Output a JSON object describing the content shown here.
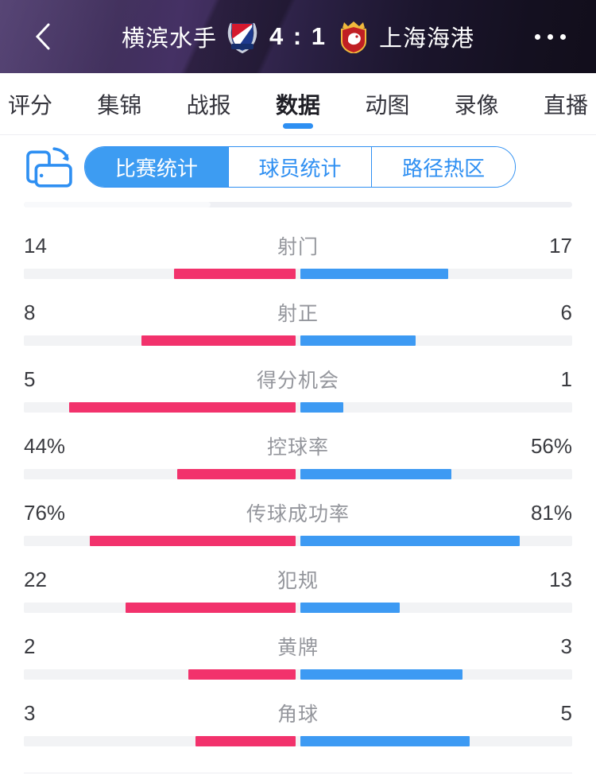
{
  "header": {
    "home_team": "横滨水手",
    "away_team": "上海海港",
    "score": "4 : 1",
    "icons": {
      "back": "chevron-left",
      "more": "ellipsis",
      "home_badge": "yokohama-marinos-crest",
      "away_badge": "shanghai-port-crest"
    }
  },
  "tabs": {
    "items": [
      {
        "id": "rating",
        "label": "评分",
        "active": false
      },
      {
        "id": "highlights",
        "label": "集锦",
        "active": false
      },
      {
        "id": "report",
        "label": "战报",
        "active": false
      },
      {
        "id": "data",
        "label": "数据",
        "active": true
      },
      {
        "id": "gifs",
        "label": "动图",
        "active": false
      },
      {
        "id": "video",
        "label": "录像",
        "active": false
      },
      {
        "id": "live",
        "label": "直播",
        "active": false
      }
    ]
  },
  "subtabs": {
    "rotate_icon": "rotate-screen",
    "items": [
      {
        "id": "match-stats",
        "label": "比赛统计",
        "active": true
      },
      {
        "id": "player-stats",
        "label": "球员统计",
        "active": false
      },
      {
        "id": "heat-map",
        "label": "路径热区",
        "active": false
      }
    ]
  },
  "stats": {
    "left_color": "#f2326c",
    "right_color": "#3d9af3",
    "track_color": "#f2f3f5",
    "rows": [
      {
        "id": "shots",
        "label": "射门",
        "left": "14",
        "right": "17"
      },
      {
        "id": "shots-on-target",
        "label": "射正",
        "left": "8",
        "right": "6"
      },
      {
        "id": "big-chances",
        "label": "得分机会",
        "left": "5",
        "right": "1"
      },
      {
        "id": "possession",
        "label": "控球率",
        "left": "44%",
        "right": "56%"
      },
      {
        "id": "pass-accuracy",
        "label": "传球成功率",
        "left": "76%",
        "right": "81%"
      },
      {
        "id": "fouls",
        "label": "犯规",
        "left": "22",
        "right": "13"
      },
      {
        "id": "yellow-cards",
        "label": "黄牌",
        "left": "2",
        "right": "3"
      },
      {
        "id": "corners",
        "label": "角球",
        "left": "3",
        "right": "5"
      }
    ]
  }
}
